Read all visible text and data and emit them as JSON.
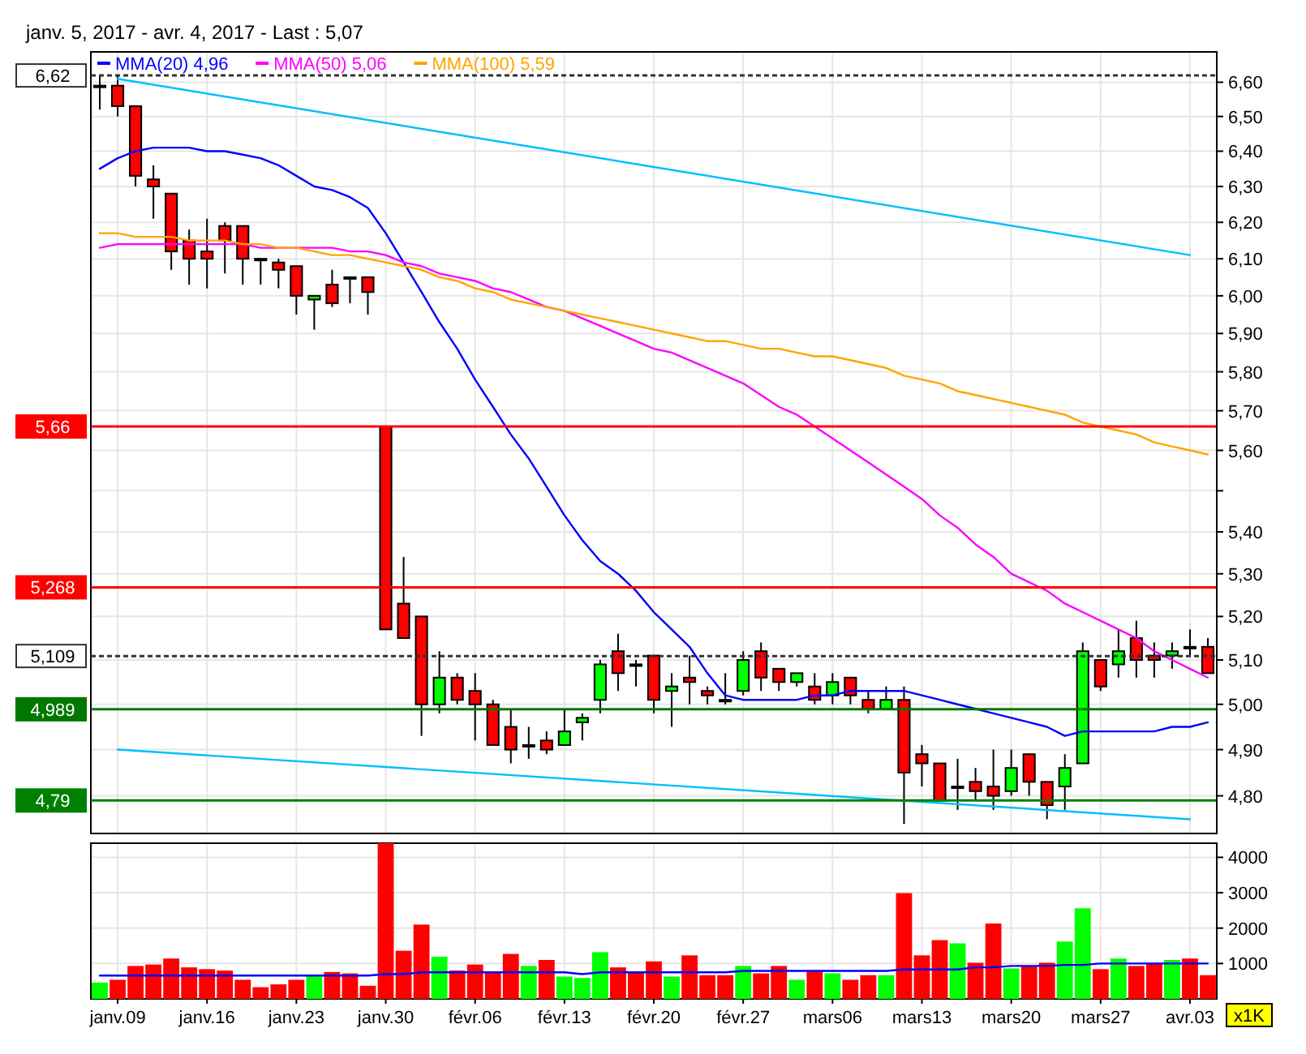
{
  "chart_data": [
    {
      "type": "candlestick",
      "title": "janv. 5, 2017 - avr. 4, 2017 - Last : 5,07",
      "categories": [
        null,
        "janv.09",
        null,
        null,
        null,
        null,
        "janv.16",
        null,
        null,
        null,
        null,
        "janv.23",
        null,
        null,
        null,
        null,
        "janv.30",
        null,
        null,
        null,
        null,
        "févr.06",
        null,
        null,
        null,
        null,
        "févr.13",
        null,
        null,
        null,
        null,
        "févr.20",
        null,
        null,
        null,
        null,
        "févr.27",
        null,
        null,
        null,
        null,
        "mars06",
        null,
        null,
        null,
        null,
        "mars13",
        null,
        null,
        null,
        null,
        "mars20",
        null,
        null,
        null,
        null,
        "mars27",
        null,
        null,
        null,
        null,
        "avr.03",
        null
      ],
      "ohlc": [
        [
          6.59,
          6.62,
          6.52,
          6.59
        ],
        [
          6.59,
          6.62,
          6.5,
          6.53
        ],
        [
          6.53,
          6.53,
          6.3,
          6.33
        ],
        [
          6.32,
          6.36,
          6.21,
          6.3
        ],
        [
          6.28,
          6.28,
          6.07,
          6.12
        ],
        [
          6.15,
          6.18,
          6.03,
          6.1
        ],
        [
          6.12,
          6.21,
          6.02,
          6.1
        ],
        [
          6.19,
          6.2,
          6.06,
          6.15
        ],
        [
          6.19,
          6.19,
          6.03,
          6.1
        ],
        [
          6.1,
          6.1,
          6.03,
          6.1
        ],
        [
          6.09,
          6.1,
          6.02,
          6.07
        ],
        [
          6.08,
          6.08,
          5.95,
          6.0
        ],
        [
          5.99,
          6.0,
          5.91,
          6.0
        ],
        [
          6.03,
          6.07,
          5.97,
          5.98
        ],
        [
          6.05,
          6.05,
          5.98,
          6.05
        ],
        [
          6.05,
          6.05,
          5.95,
          6.01
        ],
        [
          5.66,
          5.66,
          5.17,
          5.17
        ],
        [
          5.23,
          5.34,
          5.15,
          5.15
        ],
        [
          5.2,
          5.2,
          4.93,
          5.0
        ],
        [
          5.0,
          5.12,
          4.98,
          5.06
        ],
        [
          5.06,
          5.07,
          5.0,
          5.01
        ],
        [
          5.03,
          5.07,
          4.92,
          5.0
        ],
        [
          5.0,
          5.01,
          4.91,
          4.91
        ],
        [
          4.95,
          4.99,
          4.87,
          4.9
        ],
        [
          4.91,
          4.95,
          4.88,
          4.91
        ],
        [
          4.92,
          4.94,
          4.89,
          4.9
        ],
        [
          4.91,
          4.99,
          4.91,
          4.94
        ],
        [
          4.96,
          4.98,
          4.92,
          4.97
        ],
        [
          5.01,
          5.1,
          4.98,
          5.09
        ],
        [
          5.12,
          5.16,
          5.03,
          5.07
        ],
        [
          5.09,
          5.1,
          5.04,
          5.09
        ],
        [
          5.11,
          5.11,
          4.98,
          5.01
        ],
        [
          5.03,
          5.07,
          4.95,
          5.04
        ],
        [
          5.06,
          5.11,
          5.0,
          5.05
        ],
        [
          5.03,
          5.04,
          5.0,
          5.02
        ],
        [
          5.01,
          5.07,
          5.0,
          5.01
        ],
        [
          5.03,
          5.12,
          5.02,
          5.1
        ],
        [
          5.12,
          5.14,
          5.03,
          5.06
        ],
        [
          5.08,
          5.08,
          5.03,
          5.05
        ],
        [
          5.05,
          5.07,
          5.04,
          5.07
        ],
        [
          5.04,
          5.07,
          5.0,
          5.01
        ],
        [
          5.02,
          5.07,
          5.0,
          5.05
        ],
        [
          5.06,
          5.06,
          5.0,
          5.02
        ],
        [
          5.01,
          5.03,
          4.98,
          4.99
        ],
        [
          4.99,
          5.04,
          4.99,
          5.01
        ],
        [
          5.01,
          5.04,
          4.74,
          4.85
        ],
        [
          4.89,
          4.91,
          4.82,
          4.87
        ],
        [
          4.87,
          4.87,
          4.79,
          4.79
        ],
        [
          4.82,
          4.88,
          4.77,
          4.82
        ],
        [
          4.83,
          4.86,
          4.79,
          4.81
        ],
        [
          4.82,
          4.9,
          4.77,
          4.8
        ],
        [
          4.81,
          4.9,
          4.8,
          4.86
        ],
        [
          4.89,
          4.89,
          4.8,
          4.83
        ],
        [
          4.83,
          4.83,
          4.75,
          4.78
        ],
        [
          4.82,
          4.89,
          4.77,
          4.86
        ],
        [
          4.87,
          5.14,
          4.87,
          5.12
        ],
        [
          5.1,
          5.1,
          5.03,
          5.04
        ],
        [
          5.09,
          5.17,
          5.06,
          5.12
        ],
        [
          5.15,
          5.19,
          5.06,
          5.1
        ],
        [
          5.11,
          5.14,
          5.06,
          5.1
        ],
        [
          5.11,
          5.14,
          5.08,
          5.12
        ],
        [
          5.13,
          5.17,
          5.11,
          5.13
        ],
        [
          5.13,
          5.15,
          5.07,
          5.07
        ]
      ],
      "colors": [
        "#000000",
        "#ff0000",
        "#ff0000",
        "#ff0000",
        "#ff0000",
        "#ff0000",
        "#ff0000",
        "#ff0000",
        "#ff0000",
        "#000000",
        "#ff0000",
        "#ff0000",
        "#00ff00",
        "#ff0000",
        "#000000",
        "#ff0000",
        "#ff0000",
        "#ff0000",
        "#ff0000",
        "#00ff00",
        "#ff0000",
        "#ff0000",
        "#ff0000",
        "#ff0000",
        "#000000",
        "#ff0000",
        "#00ff00",
        "#00ff00",
        "#00ff00",
        "#ff0000",
        "#000000",
        "#ff0000",
        "#00ff00",
        "#ff0000",
        "#ff0000",
        "#000000",
        "#00ff00",
        "#ff0000",
        "#ff0000",
        "#00ff00",
        "#ff0000",
        "#00ff00",
        "#ff0000",
        "#ff0000",
        "#00ff00",
        "#ff0000",
        "#ff0000",
        "#ff0000",
        "#000000",
        "#ff0000",
        "#ff0000",
        "#00ff00",
        "#ff0000",
        "#ff0000",
        "#00ff00",
        "#00ff00",
        "#ff0000",
        "#00ff00",
        "#ff0000",
        "#ff0000",
        "#00ff00",
        "#000000",
        "#ff0000"
      ],
      "series": [
        {
          "type": "line",
          "name": "MMA(20) 4,96",
          "color": "#0000ff",
          "values": [
            6.35,
            6.38,
            6.4,
            6.41,
            6.41,
            6.41,
            6.4,
            6.4,
            6.39,
            6.38,
            6.36,
            6.33,
            6.3,
            6.29,
            6.27,
            6.24,
            6.17,
            6.09,
            6.01,
            5.93,
            5.86,
            5.78,
            5.71,
            5.64,
            5.58,
            5.51,
            5.44,
            5.38,
            5.33,
            5.3,
            5.26,
            5.21,
            5.17,
            5.13,
            5.07,
            5.02,
            5.01,
            5.01,
            5.01,
            5.01,
            5.02,
            5.02,
            5.03,
            5.03,
            5.03,
            5.03,
            5.02,
            5.01,
            5.0,
            4.99,
            4.98,
            4.97,
            4.96,
            4.95,
            4.93,
            4.94,
            4.94,
            4.94,
            4.94,
            4.94,
            4.95,
            4.95,
            4.96
          ]
        },
        {
          "type": "line",
          "name": "MMA(50) 5,06",
          "color": "#ff00ff",
          "values": [
            6.13,
            6.14,
            6.14,
            6.14,
            6.14,
            6.14,
            6.14,
            6.14,
            6.14,
            6.13,
            6.13,
            6.13,
            6.13,
            6.13,
            6.12,
            6.12,
            6.11,
            6.09,
            6.08,
            6.06,
            6.05,
            6.04,
            6.02,
            6.01,
            5.99,
            5.97,
            5.96,
            5.94,
            5.92,
            5.9,
            5.88,
            5.86,
            5.85,
            5.83,
            5.81,
            5.79,
            5.77,
            5.74,
            5.71,
            5.69,
            5.66,
            5.63,
            5.6,
            5.57,
            5.54,
            5.51,
            5.48,
            5.44,
            5.41,
            5.37,
            5.34,
            5.3,
            5.28,
            5.26,
            5.23,
            5.21,
            5.19,
            5.17,
            5.15,
            5.12,
            5.1,
            5.08,
            5.06
          ]
        },
        {
          "type": "line",
          "name": "MMA(100) 5,59",
          "color": "#ffa500",
          "values": [
            6.17,
            6.17,
            6.16,
            6.16,
            6.16,
            6.15,
            6.15,
            6.15,
            6.14,
            6.14,
            6.13,
            6.13,
            6.12,
            6.11,
            6.11,
            6.1,
            6.09,
            6.08,
            6.07,
            6.05,
            6.04,
            6.02,
            6.01,
            5.99,
            5.98,
            5.97,
            5.96,
            5.95,
            5.94,
            5.93,
            5.92,
            5.91,
            5.9,
            5.89,
            5.88,
            5.88,
            5.87,
            5.86,
            5.86,
            5.85,
            5.84,
            5.84,
            5.83,
            5.82,
            5.81,
            5.79,
            5.78,
            5.77,
            5.75,
            5.74,
            5.73,
            5.72,
            5.71,
            5.7,
            5.69,
            5.67,
            5.66,
            5.65,
            5.64,
            5.62,
            5.61,
            5.6,
            5.59
          ]
        },
        {
          "type": "line",
          "color": "#00bfff",
          "x": [
            "janv.09",
            "avr.03"
          ],
          "values": [
            6.61,
            6.11
          ]
        },
        {
          "type": "line",
          "color": "#00bfff",
          "x": [
            "janv.09",
            "avr.03"
          ],
          "values": [
            4.9,
            4.75
          ]
        }
      ],
      "ylim": [
        4.72,
        6.69
      ],
      "log": true,
      "yticks": [
        {
          "value": 4.8,
          "label": "4,80"
        },
        {
          "value": 4.9,
          "label": "4,90"
        },
        {
          "value": 5.0,
          "label": "5,00"
        },
        {
          "value": 5.1,
          "label": "5,10"
        },
        {
          "value": 5.2,
          "label": "5,20"
        },
        {
          "value": 5.3,
          "label": "5,30"
        },
        {
          "value": 5.4,
          "label": "5,40"
        },
        {
          "value": 5.5,
          "label": null
        },
        {
          "value": 5.6,
          "label": "5,60"
        },
        {
          "value": 5.7,
          "label": "5,70"
        },
        {
          "value": 5.8,
          "label": "5,80"
        },
        {
          "value": 5.9,
          "label": "5,90"
        },
        {
          "value": 6.0,
          "label": "6,00"
        },
        {
          "value": 6.1,
          "label": "6,10"
        },
        {
          "value": 6.2,
          "label": "6,20"
        },
        {
          "value": 6.3,
          "label": "6,30"
        },
        {
          "value": 6.4,
          "label": "6,40"
        },
        {
          "value": 6.5,
          "label": "6,50"
        },
        {
          "value": 6.6,
          "label": "6,60"
        }
      ],
      "ref_lines": [
        {
          "axis": "y",
          "value": 6.62,
          "label": "6,62",
          "color": "#333333",
          "line_style": "dashed"
        },
        {
          "axis": "y",
          "value": 5.66,
          "label": "5,66",
          "color": "#ff0000",
          "line_style": "solid"
        },
        {
          "axis": "y",
          "value": 5.268,
          "label": "5,268",
          "color": "#ff0000",
          "line_style": "solid"
        },
        {
          "axis": "y",
          "value": 5.109,
          "label": "5,109",
          "color": "#333333",
          "line_style": "dashed"
        },
        {
          "axis": "y",
          "value": 4.989,
          "label": "4,989",
          "color": "#007700",
          "line_style": "solid"
        },
        {
          "axis": "y",
          "value": 4.79,
          "label": "4,79",
          "color": "#008000",
          "line_style": "solid"
        }
      ],
      "grid": true,
      "legend": "top left",
      "tick_labels": "y"
    },
    {
      "type": "bar",
      "categories": [
        null,
        "janv.09",
        null,
        null,
        null,
        null,
        "janv.16",
        null,
        null,
        null,
        null,
        "janv.23",
        null,
        null,
        null,
        null,
        "janv.30",
        null,
        null,
        null,
        null,
        "févr.06",
        null,
        null,
        null,
        null,
        "févr.13",
        null,
        null,
        null,
        null,
        "févr.20",
        null,
        null,
        null,
        null,
        "févr.27",
        null,
        null,
        null,
        null,
        "mars06",
        null,
        null,
        null,
        null,
        "mars13",
        null,
        null,
        null,
        null,
        "mars20",
        null,
        null,
        null,
        null,
        "mars27",
        null,
        null,
        null,
        null,
        "avr.03",
        null
      ],
      "series": [
        {
          "type": "bar",
          "values": [
            460,
            540,
            930,
            970,
            1140,
            890,
            840,
            800,
            540,
            330,
            410,
            540,
            640,
            760,
            720,
            370,
            4400,
            1360,
            2100,
            1190,
            800,
            970,
            760,
            1270,
            930,
            1100,
            630,
            590,
            1320,
            890,
            760,
            1060,
            630,
            1230,
            670,
            670,
            930,
            720,
            930,
            540,
            790,
            720,
            540,
            670,
            670,
            2990,
            1230,
            1660,
            1570,
            1020,
            2130,
            860,
            930,
            1020,
            1620,
            2560,
            840,
            1140,
            930,
            1020,
            1100,
            1140,
            670
          ],
          "colors": [
            "#00ff00",
            "#ff0000",
            "#ff0000",
            "#ff0000",
            "#ff0000",
            "#ff0000",
            "#ff0000",
            "#ff0000",
            "#ff0000",
            "#ff0000",
            "#ff0000",
            "#ff0000",
            "#00ff00",
            "#ff0000",
            "#ff0000",
            "#ff0000",
            "#ff0000",
            "#ff0000",
            "#ff0000",
            "#00ff00",
            "#ff0000",
            "#ff0000",
            "#ff0000",
            "#ff0000",
            "#00ff00",
            "#ff0000",
            "#00ff00",
            "#00ff00",
            "#00ff00",
            "#ff0000",
            "#ff0000",
            "#ff0000",
            "#00ff00",
            "#ff0000",
            "#ff0000",
            "#ff0000",
            "#00ff00",
            "#ff0000",
            "#ff0000",
            "#00ff00",
            "#ff0000",
            "#00ff00",
            "#ff0000",
            "#ff0000",
            "#00ff00",
            "#ff0000",
            "#ff0000",
            "#ff0000",
            "#00ff00",
            "#ff0000",
            "#ff0000",
            "#00ff00",
            "#ff0000",
            "#ff0000",
            "#00ff00",
            "#00ff00",
            "#ff0000",
            "#00ff00",
            "#ff0000",
            "#ff0000",
            "#00ff00",
            "#ff0000",
            "#ff0000"
          ]
        },
        {
          "type": "line",
          "color": "#0000ff",
          "values": [
            660,
            660,
            660,
            660,
            660,
            660,
            660,
            660,
            660,
            660,
            660,
            660,
            660,
            660,
            660,
            660,
            700,
            700,
            750,
            750,
            750,
            750,
            750,
            750,
            750,
            750,
            750,
            700,
            750,
            750,
            750,
            750,
            750,
            750,
            750,
            750,
            790,
            790,
            790,
            790,
            790,
            790,
            790,
            790,
            790,
            830,
            830,
            830,
            830,
            890,
            890,
            930,
            930,
            930,
            960,
            960,
            1000,
            1000,
            1000,
            1000,
            1000,
            1000,
            1000
          ]
        }
      ],
      "ylim": [
        0,
        4400
      ],
      "yticks": [
        1000,
        2000,
        3000,
        4000
      ],
      "grid": true,
      "annotations": [
        "x1K"
      ]
    }
  ]
}
